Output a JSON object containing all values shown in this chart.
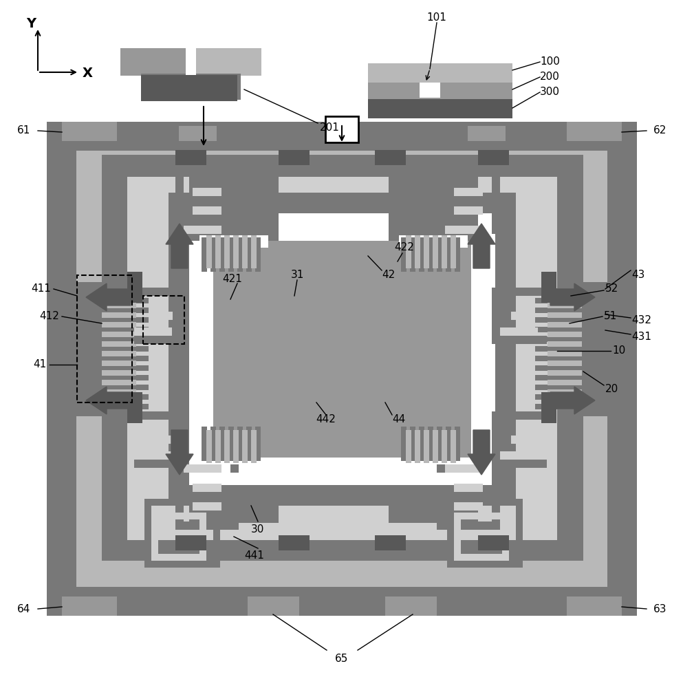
{
  "bg": "#ffffff",
  "c1": "#c8c8c8",
  "c2": "#a0a0a0",
  "c3": "#787878",
  "c4": "#585858",
  "c5": "#383838",
  "white": "#ffffff",
  "black": "#000000"
}
